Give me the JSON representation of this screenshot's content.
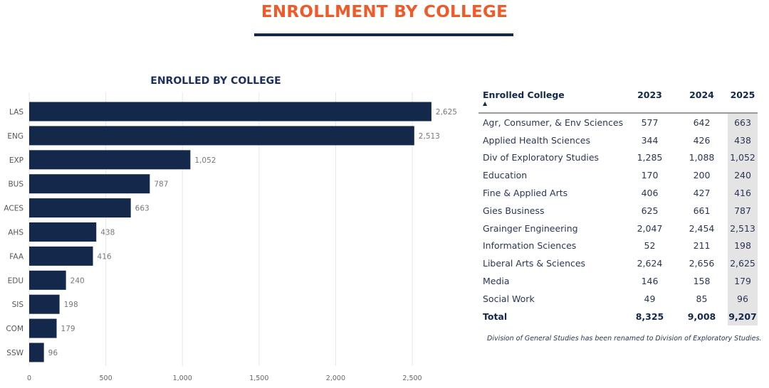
{
  "page_title": "ENROLLMENT BY COLLEGE",
  "colors": {
    "title": "#f05a28",
    "bar": "#13284a",
    "highlight_column": "#e4e4e4"
  },
  "chart_data": {
    "type": "bar",
    "orientation": "horizontal",
    "title": "ENROLLED BY COLLEGE",
    "categories": [
      "LAS",
      "ENG",
      "EXP",
      "BUS",
      "ACES",
      "AHS",
      "FAA",
      "EDU",
      "SIS",
      "COM",
      "SSW"
    ],
    "values": [
      2625,
      2513,
      1052,
      787,
      663,
      438,
      416,
      240,
      198,
      179,
      96
    ],
    "value_labels": [
      "2,625",
      "2,513",
      "1,052",
      "787",
      "663",
      "438",
      "416",
      "240",
      "198",
      "179",
      "96"
    ],
    "xlim": [
      0,
      2700
    ],
    "xticks": [
      0,
      500,
      1000,
      1500,
      2000,
      2500
    ],
    "xtick_labels": [
      "0",
      "500",
      "1,000",
      "1,500",
      "2,000",
      "2,500"
    ],
    "grid": true
  },
  "table": {
    "headers": [
      "Enrolled College",
      "2023",
      "2024",
      "2025"
    ],
    "sort_icon": "sort-ascending-icon",
    "rows": [
      [
        "Agr, Consumer, & Env Sciences",
        "577",
        "642",
        "663"
      ],
      [
        "Applied Health Sciences",
        "344",
        "426",
        "438"
      ],
      [
        "Div of Exploratory Studies",
        "1,285",
        "1,088",
        "1,052"
      ],
      [
        "Education",
        "170",
        "200",
        "240"
      ],
      [
        "Fine & Applied Arts",
        "406",
        "427",
        "416"
      ],
      [
        "Gies Business",
        "625",
        "661",
        "787"
      ],
      [
        "Grainger Engineering",
        "2,047",
        "2,454",
        "2,513"
      ],
      [
        "Information Sciences",
        "52",
        "211",
        "198"
      ],
      [
        "Liberal Arts & Sciences",
        "2,624",
        "2,656",
        "2,625"
      ],
      [
        "Media",
        "146",
        "158",
        "179"
      ],
      [
        "Social Work",
        "49",
        "85",
        "96"
      ]
    ],
    "total": [
      "Total",
      "8,325",
      "9,008",
      "9,207"
    ],
    "note": "Division of General Studies has been renamed to Division of Exploratory Studies."
  }
}
